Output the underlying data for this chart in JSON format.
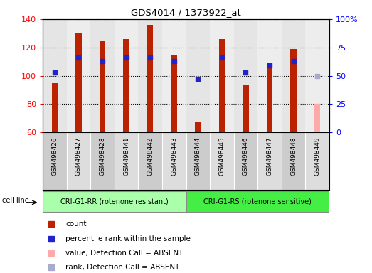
{
  "title": "GDS4014 / 1373922_at",
  "samples": [
    "GSM498426",
    "GSM498427",
    "GSM498428",
    "GSM498441",
    "GSM498442",
    "GSM498443",
    "GSM498444",
    "GSM498445",
    "GSM498446",
    "GSM498447",
    "GSM498448",
    "GSM498449"
  ],
  "counts": [
    95,
    130,
    125,
    126,
    136,
    115,
    67,
    126,
    94,
    108,
    119,
    80
  ],
  "counts_absent": [
    false,
    false,
    false,
    false,
    false,
    false,
    false,
    false,
    false,
    false,
    false,
    true
  ],
  "percentile_ranks_pct": [
    53,
    66,
    63,
    66,
    66,
    63,
    47,
    66,
    53,
    59,
    63,
    50
  ],
  "percentile_ranks_absent": [
    false,
    false,
    false,
    false,
    false,
    false,
    false,
    false,
    false,
    false,
    false,
    true
  ],
  "ylim_left": [
    60,
    140
  ],
  "ylim_right": [
    0,
    100
  ],
  "yticks_left": [
    60,
    80,
    100,
    120,
    140
  ],
  "yticks_right": [
    0,
    25,
    50,
    75,
    100
  ],
  "ytick_labels_right": [
    "0",
    "25",
    "50",
    "75",
    "100%"
  ],
  "group1_label": "CRI-G1-RR (rotenone resistant)",
  "group2_label": "CRI-G1-RS (rotenone sensitive)",
  "group1_count": 6,
  "group2_count": 6,
  "cell_line_label": "cell line",
  "bar_color_red": "#bb2200",
  "bar_color_pink": "#ffaaaa",
  "dot_color_blue": "#2222cc",
  "dot_color_lightblue": "#aaaacc",
  "group1_bg": "#aaffaa",
  "group2_bg": "#44ee44",
  "bar_width": 0.25,
  "legend_items": [
    {
      "color": "#bb2200",
      "label": "count"
    },
    {
      "color": "#2222cc",
      "label": "percentile rank within the sample"
    },
    {
      "color": "#ffaaaa",
      "label": "value, Detection Call = ABSENT"
    },
    {
      "color": "#aaaacc",
      "label": "rank, Detection Call = ABSENT"
    }
  ]
}
